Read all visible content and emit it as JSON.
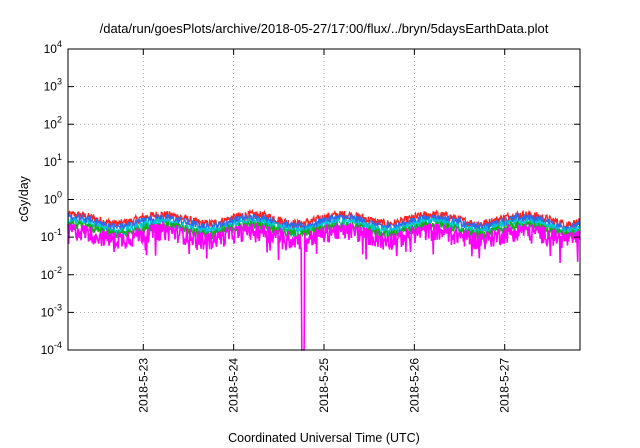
{
  "chart_data": {
    "type": "line",
    "title": "/data/run/goesPlots/archive/2018-05-27/17:00/flux/../bryn/5daysEarthData.plot",
    "xlabel": "Coordinated Universal Time (UTC)",
    "ylabel": "cGy/day",
    "yscale": "log",
    "ylim": [
      0.0001,
      10000
    ],
    "y_ticks": [
      {
        "base": "10",
        "exp": "-4"
      },
      {
        "base": "10",
        "exp": "-3"
      },
      {
        "base": "10",
        "exp": "-2"
      },
      {
        "base": "10",
        "exp": "-1"
      },
      {
        "base": "10",
        "exp": "0"
      },
      {
        "base": "10",
        "exp": "1"
      },
      {
        "base": "10",
        "exp": "2"
      },
      {
        "base": "10",
        "exp": "3"
      },
      {
        "base": "10",
        "exp": "4"
      }
    ],
    "xlim": [
      "2018-05-22 04:00",
      "2018-05-27 20:00"
    ],
    "x_ticks": [
      "2018-5-23",
      "2018-5-24",
      "2018-5-25",
      "2018-5-26",
      "2018-5-27"
    ],
    "grid": true,
    "series": [
      {
        "color": "#ff2020",
        "typical": 0.38
      },
      {
        "color": "#2a6cf0",
        "typical": 0.31
      },
      {
        "color": "#00c8d2",
        "typical": 0.24
      },
      {
        "color": "#10b010",
        "typical": 0.2
      },
      {
        "color": "#ff00ff",
        "typical": 0.15,
        "dropout": {
          "from": "2018-05-24 18:00",
          "to": "2018-05-24 18:45",
          "value": 0.0001
        }
      }
    ]
  }
}
